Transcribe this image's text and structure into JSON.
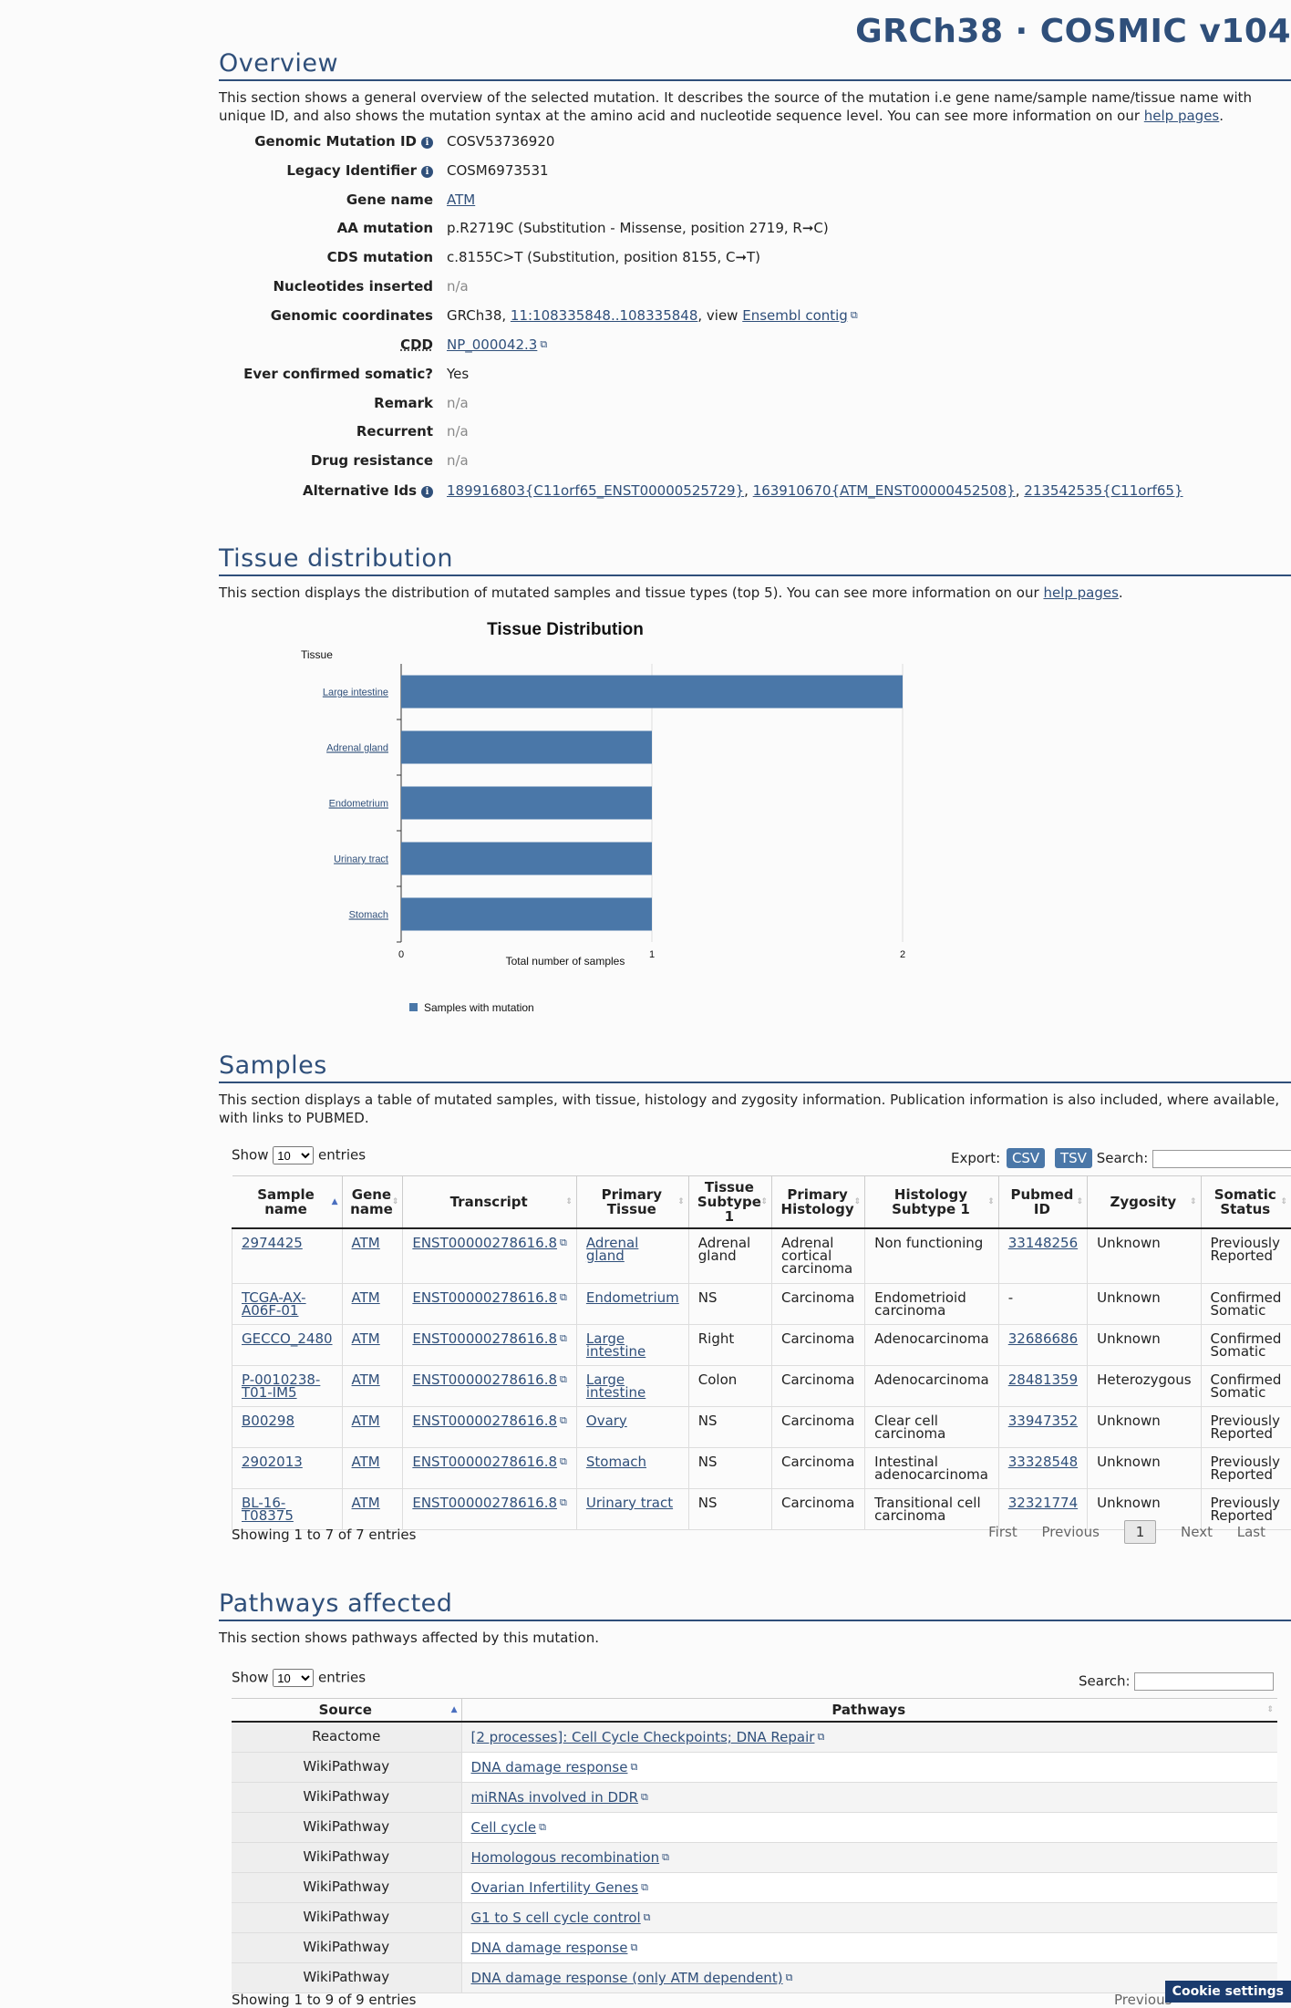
{
  "site": {
    "title": "GRCh38 · COSMIC v104"
  },
  "overview": {
    "heading": "Overview",
    "desc_prefix": "This section shows a general overview of the selected mutation. It describes the source of the mutation i.e gene name/sample name/tissue name with unique ID, and also shows the mutation syntax at the amino acid and nucleotide sequence level. You can see more information on our ",
    "help_link": "help pages",
    "desc_suffix": ".",
    "rows": {
      "genomic_mutation_id": {
        "label": "Genomic Mutation ID",
        "value": "COSV53736920"
      },
      "legacy_identifier": {
        "label": "Legacy Identifier",
        "value": "COSM6973531"
      },
      "gene_name": {
        "label": "Gene name",
        "value": "ATM"
      },
      "aa_mutation": {
        "label": "AA mutation",
        "value": "p.R2719C (Substitution - Missense, position 2719, R➞C)"
      },
      "cds_mutation": {
        "label": "CDS mutation",
        "value": "c.8155C>T (Substitution, position 8155, C➞T)"
      },
      "nucleotides_inserted": {
        "label": "Nucleotides inserted",
        "value": "n/a"
      },
      "genomic_coordinates": {
        "label": "Genomic coordinates",
        "prefix": "GRCh38, ",
        "coords": "11:108335848..108335848",
        "middle": ", view ",
        "ensembl": "Ensembl contig"
      },
      "cdd": {
        "label": "CDD",
        "value": "NP_000042.3"
      },
      "ever_confirmed": {
        "label": "Ever confirmed somatic?",
        "value": "Yes"
      },
      "remark": {
        "label": "Remark",
        "value": "n/a"
      },
      "recurrent": {
        "label": "Recurrent",
        "value": "n/a"
      },
      "drug_resistance": {
        "label": "Drug resistance",
        "value": "n/a"
      },
      "alternative_ids": {
        "label": "Alternative Ids",
        "ids": [
          "189916803{C11orf65_ENST00000525729}",
          "163910670{ATM_ENST00000452508}",
          "213542535{C11orf65}"
        ],
        "sep": ", "
      }
    }
  },
  "tissue": {
    "heading": "Tissue distribution",
    "desc_prefix": "This section displays the distribution of mutated samples and tissue types (top 5). You can see more information on our ",
    "help_link": "help pages",
    "desc_suffix": "."
  },
  "chart_data": {
    "type": "bar",
    "orientation": "horizontal",
    "title": "Tissue Distribution",
    "ylabel": "Tissue",
    "xlabel": "Total number of samples",
    "categories": [
      "Large intestine",
      "Adrenal gland",
      "Endometrium",
      "Urinary tract",
      "Stomach"
    ],
    "series": [
      {
        "name": "Samples with mutation",
        "values": [
          2,
          1,
          1,
          1,
          1
        ]
      }
    ],
    "xlim": [
      0,
      2
    ],
    "xticks": [
      "0",
      "1",
      "2"
    ],
    "grid": true,
    "legend": "bottom-left",
    "color": "#4a77a8"
  },
  "samples": {
    "heading": "Samples",
    "desc": "This section displays a table of mutated samples, with tissue, histology and zygosity information. Publication information is also included, where available, with links to PUBMED.",
    "show_label": "Show",
    "entries_label": "entries",
    "page_size": "10",
    "export_label": "Export:",
    "csv": "CSV",
    "tsv": "TSV",
    "search_label": "Search:",
    "columns": [
      "Sample name",
      "Gene name",
      "Transcript",
      "Primary Tissue",
      "Tissue Subtype 1",
      "Primary Histology",
      "Histology Subtype 1",
      "Pubmed ID",
      "Zygosity",
      "Somatic Status"
    ],
    "rows": [
      [
        "2974425",
        "ATM",
        "ENST00000278616.8",
        "Adrenal gland",
        "Adrenal gland",
        "Adrenal cortical carcinoma",
        "Non functioning",
        "33148256",
        "Unknown",
        "Previously Reported"
      ],
      [
        "TCGA-AX-A06F-01",
        "ATM",
        "ENST00000278616.8",
        "Endometrium",
        "NS",
        "Carcinoma",
        "Endometrioid carcinoma",
        "-",
        "Unknown",
        "Confirmed Somatic"
      ],
      [
        "GECCO_2480",
        "ATM",
        "ENST00000278616.8",
        "Large intestine",
        "Right",
        "Carcinoma",
        "Adenocarcinoma",
        "32686686",
        "Unknown",
        "Confirmed Somatic"
      ],
      [
        "P-0010238-T01-IM5",
        "ATM",
        "ENST00000278616.8",
        "Large intestine",
        "Colon",
        "Carcinoma",
        "Adenocarcinoma",
        "28481359",
        "Heterozygous",
        "Confirmed Somatic"
      ],
      [
        "B00298",
        "ATM",
        "ENST00000278616.8",
        "Ovary",
        "NS",
        "Carcinoma",
        "Clear cell carcinoma",
        "33947352",
        "Unknown",
        "Previously Reported"
      ],
      [
        "2902013",
        "ATM",
        "ENST00000278616.8",
        "Stomach",
        "NS",
        "Carcinoma",
        "Intestinal adenocarcinoma",
        "33328548",
        "Unknown",
        "Previously Reported"
      ],
      [
        "BL-16-T08375",
        "ATM",
        "ENST00000278616.8",
        "Urinary tract",
        "NS",
        "Carcinoma",
        "Transitional cell carcinoma",
        "32321774",
        "Unknown",
        "Previously Reported"
      ]
    ],
    "info": "Showing 1 to 7 of 7 entries",
    "pager": {
      "first": "First",
      "previous": "Previous",
      "current": "1",
      "next": "Next",
      "last": "Last"
    }
  },
  "pathways": {
    "heading": "Pathways affected",
    "desc": "This section shows pathways affected by this mutation.",
    "show_label": "Show",
    "entries_label": "entries",
    "page_size": "10",
    "search_label": "Search:",
    "columns": [
      "Source",
      "Pathways"
    ],
    "rows": [
      [
        "Reactome",
        "[2 processes]: Cell Cycle Checkpoints; DNA Repair"
      ],
      [
        "WikiPathway",
        "DNA damage response"
      ],
      [
        "WikiPathway",
        "miRNAs involved in DDR"
      ],
      [
        "WikiPathway",
        "Cell cycle"
      ],
      [
        "WikiPathway",
        "Homologous recombination"
      ],
      [
        "WikiPathway",
        "Ovarian Infertility Genes"
      ],
      [
        "WikiPathway",
        "G1 to S cell cycle control"
      ],
      [
        "WikiPathway",
        "DNA damage response"
      ],
      [
        "WikiPathway",
        "DNA damage response (only ATM dependent)"
      ]
    ],
    "info": "Showing 1 to 9 of 9 entries",
    "pager_previous": "Previous"
  },
  "cookie": {
    "label": "Cookie settings"
  }
}
